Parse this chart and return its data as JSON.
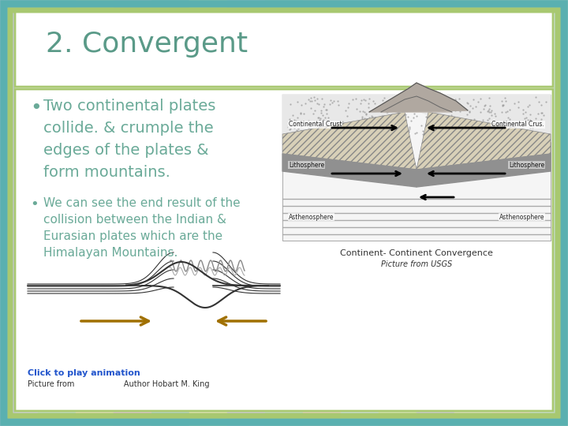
{
  "title": "2. Convergent",
  "bullet1_large": "Two continental plates\ncollide. & crumple the\nedges of the plates &\nform mountains.",
  "bullet2_small": "We can see the end result of the\ncollision between the Indian &\nEurasian plates which are the\nHimalayan Mountains.",
  "caption1": "Continent- Continent Convergence",
  "caption2": "Picture from USGS",
  "footer1": "Click to play animation",
  "footer2": "Picture from                    Author Hobart M. King",
  "bg_stripes": [
    "#c8c8e0",
    "#b8d4c0",
    "#e0d8b0",
    "#d8b8d0",
    "#a8c8c8",
    "#e0e0b0",
    "#c8c0e0",
    "#b8d0c0",
    "#e0c8b8",
    "#c8d8e0",
    "#d0e0a8",
    "#c8c0d8",
    "#d8d8b8",
    "#e0d0b8",
    "#c0d8d0"
  ],
  "bg_outer": "#c8d8a8",
  "bg_inner": "#ffffff",
  "title_color": "#5a9a88",
  "bullet1_color": "#6aaa98",
  "bullet2_color": "#6aaa98",
  "border_teal": "#5ab0b0",
  "border_green": "#a8c870",
  "title_fontsize": 26,
  "bullet1_fontsize": 14,
  "bullet2_fontsize": 11
}
